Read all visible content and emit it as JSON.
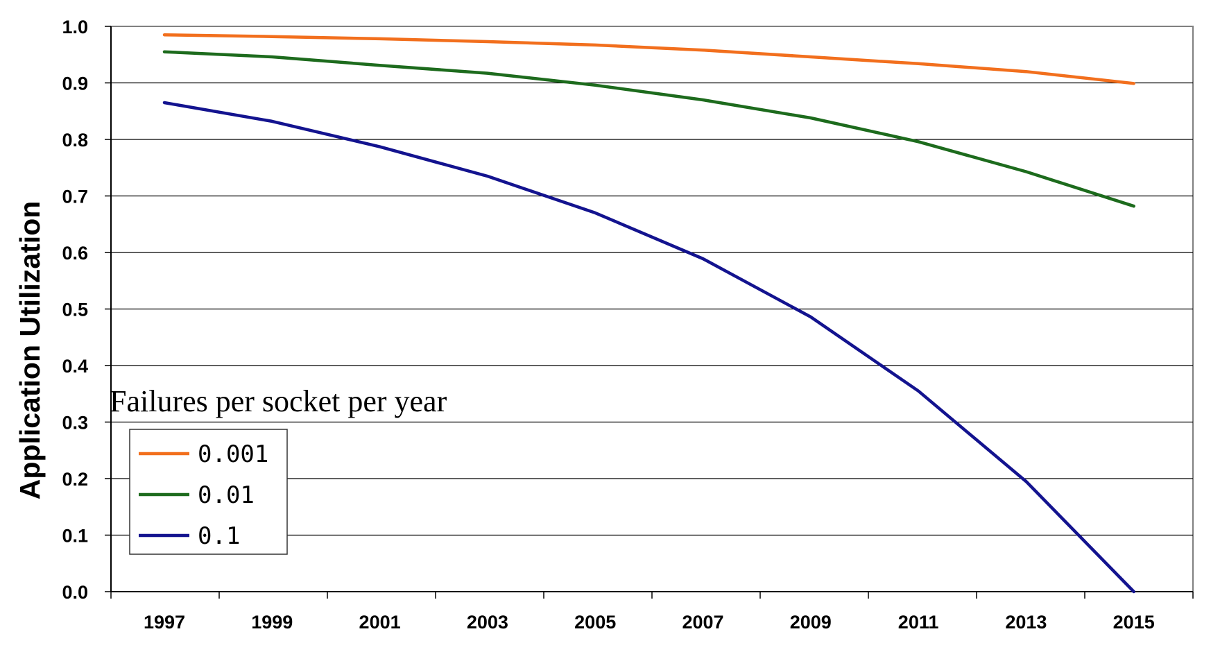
{
  "chart_data": {
    "type": "line",
    "title": "",
    "xlabel": "",
    "ylabel": "Application Utilization",
    "x": [
      1997,
      1999,
      2001,
      2003,
      2005,
      2007,
      2009,
      2011,
      2013,
      2015
    ],
    "x_tick_labels": [
      "1997",
      "1999",
      "2001",
      "2003",
      "2005",
      "2007",
      "2009",
      "2011",
      "2013",
      "2015"
    ],
    "ylim": [
      0.0,
      1.0
    ],
    "y_ticks": [
      0.0,
      0.1,
      0.2,
      0.3,
      0.4,
      0.5,
      0.6,
      0.7,
      0.8,
      0.9,
      1.0
    ],
    "y_tick_labels": [
      "0.0",
      "0.1",
      "0.2",
      "0.3",
      "0.4",
      "0.5",
      "0.6",
      "0.7",
      "0.8",
      "0.9",
      "1.0"
    ],
    "grid": true,
    "legend": {
      "title": "Failures per socket per year",
      "placement": "bottom-left"
    },
    "series": [
      {
        "name": "0.001",
        "color": "#f26f1d",
        "values": [
          0.985,
          0.982,
          0.978,
          0.973,
          0.967,
          0.958,
          0.946,
          0.934,
          0.92,
          0.899
        ]
      },
      {
        "name": "0.01",
        "color": "#1d6b1d",
        "values": [
          0.955,
          0.946,
          0.931,
          0.917,
          0.896,
          0.87,
          0.838,
          0.796,
          0.743,
          0.682
        ]
      },
      {
        "name": "0.1",
        "color": "#13138f",
        "values": [
          0.865,
          0.832,
          0.787,
          0.735,
          0.67,
          0.589,
          0.486,
          0.355,
          0.195,
          0.0
        ]
      }
    ]
  }
}
